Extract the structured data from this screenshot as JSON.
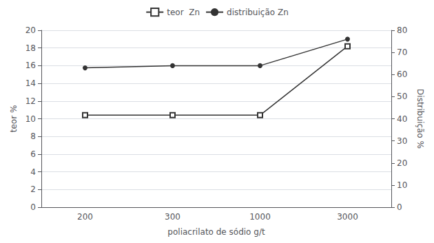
{
  "chart_data": {
    "type": "line",
    "categories": [
      "200",
      "300",
      "1000",
      "3000"
    ],
    "xlabel": "poliacrilato de sódio g/t",
    "ylabel": "teor %",
    "y2label": "Distribuição %",
    "ylim": [
      0,
      20
    ],
    "yticks": [
      0,
      2,
      4,
      6,
      8,
      10,
      12,
      14,
      16,
      18,
      20
    ],
    "y2lim": [
      0,
      80
    ],
    "y2ticks": [
      0,
      10,
      20,
      30,
      40,
      50,
      60,
      70,
      80
    ],
    "grid": true,
    "legend": "top",
    "series": [
      {
        "name": "teor  Zn",
        "color": "#333333",
        "marker": "empty_square",
        "values": [
          10.4,
          10.4,
          10.4,
          18.2
        ]
      },
      {
        "name": "distribuição Zn",
        "color": "#333333",
        "marker": "circle",
        "axis": "y2",
        "values": [
          63,
          64,
          64,
          76
        ]
      }
    ]
  }
}
